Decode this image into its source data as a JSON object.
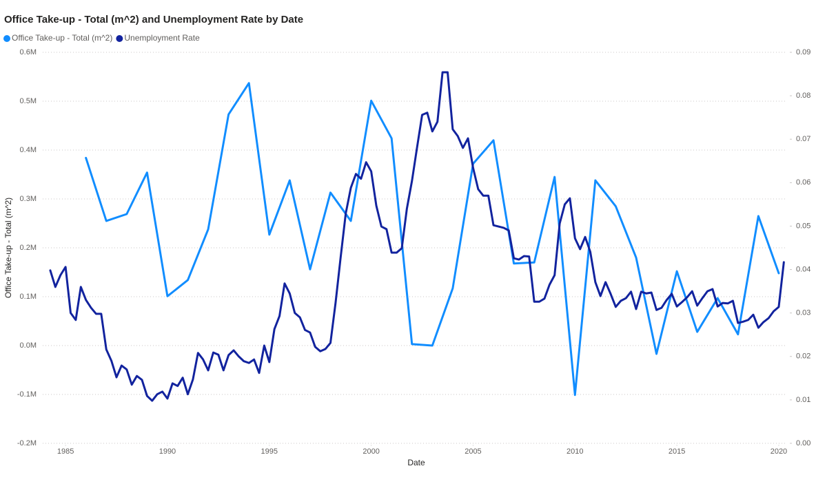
{
  "chart_data": {
    "type": "line",
    "title": "Office Take-up - Total (m^2) and Unemployment Rate by Date",
    "x_label": "Date",
    "y_label": "Office Take-up - Total (m^2)",
    "xlim": [
      1983.88,
      2020.34
    ],
    "xticks": [
      1985,
      1990,
      1995,
      2000,
      2005,
      2010,
      2015,
      2020
    ],
    "ylim": [
      -200000,
      600000
    ],
    "yticks": [
      {
        "value": -200000,
        "label": "-0.2M"
      },
      {
        "value": -100000,
        "label": "-0.1M"
      },
      {
        "value": 0,
        "label": "0.0M"
      },
      {
        "value": 100000,
        "label": "0.1M"
      },
      {
        "value": 200000,
        "label": "0.2M"
      },
      {
        "value": 300000,
        "label": "0.3M"
      },
      {
        "value": 400000,
        "label": "0.4M"
      },
      {
        "value": 500000,
        "label": "0.5M"
      },
      {
        "value": 600000,
        "label": "0.6M"
      }
    ],
    "y2lim": [
      0,
      0.09
    ],
    "y2ticks": [
      {
        "value": 0,
        "label": "0.00"
      },
      0.01,
      0.02,
      0.03,
      0.04,
      0.05,
      0.06,
      0.07,
      0.08,
      0.09
    ],
    "grid": true,
    "legend": "top-left",
    "series": [
      {
        "name": "Office Take-up - Total (m^2)",
        "color": "#118DFF",
        "x": [
          1986,
          1987,
          1988,
          1989,
          1990,
          1991,
          1992,
          1993,
          1994,
          1995,
          1996,
          1997,
          1998,
          1999,
          2000,
          2001,
          2002,
          2003,
          2004,
          2005,
          2006,
          2007,
          2008,
          2009,
          2010,
          2011,
          2012,
          2013,
          2014,
          2015,
          2016,
          2017,
          2018,
          2019,
          2020
        ],
        "values": [
          384000,
          255000,
          269000,
          354000,
          101000,
          134000,
          238000,
          473000,
          537000,
          227000,
          338000,
          156000,
          313000,
          255000,
          501000,
          424000,
          3000,
          0,
          117000,
          372000,
          420000,
          168000,
          170000,
          345000,
          -101000,
          338000,
          285000,
          180000,
          -17000,
          152000,
          28000,
          97000,
          23000,
          265000,
          148000
        ]
      },
      {
        "name": "Unemployment Rate",
        "color": "#12239E",
        "axis": "y2",
        "x": [
          1984.25,
          1984.5,
          1984.75,
          1985,
          1985.25,
          1985.5,
          1985.75,
          1986,
          1986.25,
          1986.5,
          1986.75,
          1987,
          1987.25,
          1987.5,
          1987.75,
          1988,
          1988.25,
          1988.5,
          1988.75,
          1989,
          1989.25,
          1989.5,
          1989.75,
          1990,
          1990.25,
          1990.5,
          1990.75,
          1991,
          1991.25,
          1991.5,
          1991.75,
          1992,
          1992.25,
          1992.5,
          1992.75,
          1993,
          1993.25,
          1993.5,
          1993.75,
          1994,
          1994.25,
          1994.5,
          1994.75,
          1995,
          1995.25,
          1995.5,
          1995.75,
          1996,
          1996.25,
          1996.5,
          1996.75,
          1997,
          1997.25,
          1997.5,
          1997.75,
          1998,
          1998.25,
          1998.5,
          1998.75,
          1999,
          1999.25,
          1999.5,
          1999.75,
          2000,
          2000.25,
          2000.5,
          2000.75,
          2001,
          2001.25,
          2001.5,
          2001.75,
          2002,
          2002.25,
          2002.5,
          2002.75,
          2003,
          2003.25,
          2003.5,
          2003.75,
          2004,
          2004.25,
          2004.5,
          2004.75,
          2005,
          2005.25,
          2005.5,
          2005.75,
          2006,
          2006.25,
          2006.5,
          2006.75,
          2007,
          2007.25,
          2007.5,
          2007.75,
          2008,
          2008.25,
          2008.5,
          2008.75,
          2009,
          2009.25,
          2009.5,
          2009.75,
          2010,
          2010.25,
          2010.5,
          2010.75,
          2011,
          2011.25,
          2011.5,
          2011.75,
          2012,
          2012.25,
          2012.5,
          2012.75,
          2013,
          2013.25,
          2013.5,
          2013.75,
          2014,
          2014.25,
          2014.5,
          2014.75,
          2015,
          2015.25,
          2015.5,
          2015.75,
          2016,
          2016.25,
          2016.5,
          2016.75,
          2017,
          2017.25,
          2017.5,
          2017.75,
          2018,
          2018.25,
          2018.5,
          2018.75,
          2019,
          2019.25,
          2019.5,
          2019.75,
          2020,
          2020.25
        ],
        "values": [
          0.0398,
          0.036,
          0.0387,
          0.0406,
          0.03,
          0.0284,
          0.036,
          0.033,
          0.0312,
          0.0298,
          0.0298,
          0.0216,
          0.019,
          0.0152,
          0.0179,
          0.017,
          0.0135,
          0.0155,
          0.0146,
          0.0109,
          0.0098,
          0.0113,
          0.0119,
          0.0103,
          0.0138,
          0.0132,
          0.0151,
          0.0113,
          0.0147,
          0.0208,
          0.0193,
          0.0168,
          0.0209,
          0.0204,
          0.0168,
          0.0203,
          0.0214,
          0.02,
          0.0189,
          0.0185,
          0.0193,
          0.0162,
          0.0225,
          0.0187,
          0.0263,
          0.0293,
          0.0368,
          0.0345,
          0.03,
          0.029,
          0.0261,
          0.0255,
          0.0222,
          0.0212,
          0.0217,
          0.0231,
          0.0323,
          0.0428,
          0.0529,
          0.0588,
          0.062,
          0.0609,
          0.0647,
          0.0626,
          0.0547,
          0.0499,
          0.0493,
          0.0439,
          0.0439,
          0.0449,
          0.054,
          0.0604,
          0.0681,
          0.0756,
          0.0761,
          0.0718,
          0.074,
          0.0854,
          0.0854,
          0.0723,
          0.0707,
          0.068,
          0.0702,
          0.0634,
          0.0585,
          0.057,
          0.057,
          0.0502,
          0.0499,
          0.0496,
          0.049,
          0.0426,
          0.0423,
          0.0431,
          0.043,
          0.0326,
          0.0326,
          0.0333,
          0.0365,
          0.0387,
          0.0506,
          0.055,
          0.0564,
          0.0472,
          0.0447,
          0.0475,
          0.0441,
          0.0371,
          0.0339,
          0.0371,
          0.0344,
          0.0314,
          0.0328,
          0.0334,
          0.0349,
          0.0309,
          0.0349,
          0.0345,
          0.0347,
          0.0307,
          0.0312,
          0.033,
          0.0344,
          0.0315,
          0.0325,
          0.0336,
          0.035,
          0.0317,
          0.0334,
          0.035,
          0.0355,
          0.0315,
          0.0323,
          0.0322,
          0.0328,
          0.0277,
          0.028,
          0.0284,
          0.0296,
          0.0266,
          0.0279,
          0.0288,
          0.0304,
          0.0314,
          0.0417
        ]
      }
    ]
  }
}
